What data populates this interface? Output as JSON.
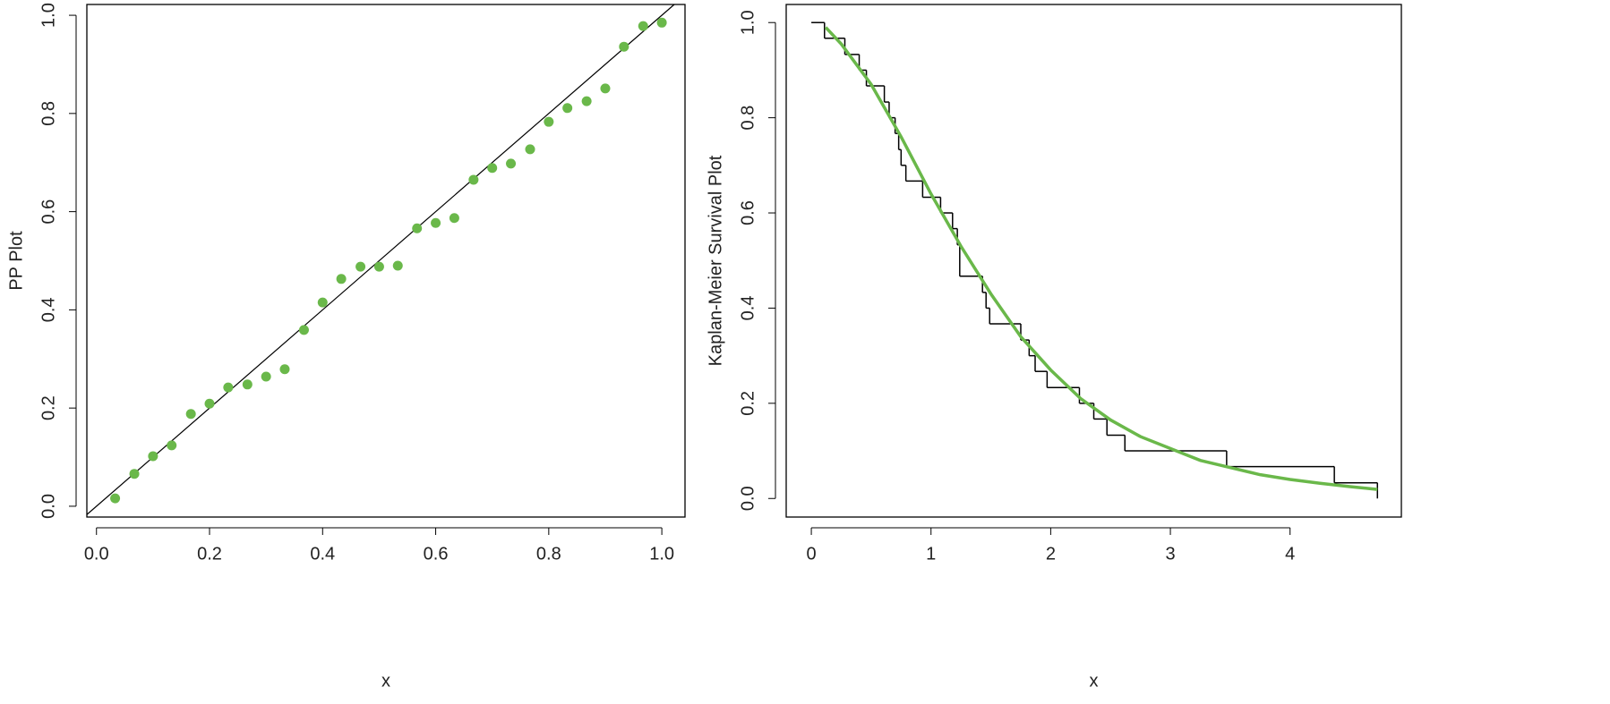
{
  "chart_data": [
    {
      "type": "scatter",
      "xlabel": "x",
      "ylabel": "PP Plot",
      "color": "#6ab84a",
      "diagonal": true,
      "x": [
        0.033,
        0.067,
        0.1,
        0.133,
        0.167,
        0.2,
        0.233,
        0.267,
        0.3,
        0.333,
        0.367,
        0.4,
        0.433,
        0.467,
        0.5,
        0.533,
        0.567,
        0.6,
        0.633,
        0.667,
        0.7,
        0.733,
        0.767,
        0.8,
        0.833,
        0.867,
        0.9,
        0.933,
        0.967,
        1.0
      ],
      "values": [
        0.016,
        0.066,
        0.102,
        0.124,
        0.188,
        0.209,
        0.242,
        0.248,
        0.264,
        0.279,
        0.359,
        0.415,
        0.463,
        0.488,
        0.488,
        0.49,
        0.566,
        0.577,
        0.587,
        0.665,
        0.689,
        0.698,
        0.727,
        0.783,
        0.811,
        0.825,
        0.851,
        0.936,
        0.978,
        0.985
      ],
      "xlim": [
        -0.017,
        1.041
      ],
      "ylim": [
        -0.022,
        1.022
      ],
      "xticks": [
        {
          "value": 0,
          "label": "0.0"
        },
        0.2,
        0.4,
        0.6,
        0.8,
        {
          "value": 1,
          "label": "1.0"
        }
      ],
      "yticks": [
        {
          "value": 0,
          "label": "0.0"
        },
        0.2,
        0.4,
        0.6,
        0.8,
        {
          "value": 1,
          "label": "1.0"
        }
      ]
    },
    {
      "type": "line",
      "xlabel": "x",
      "ylabel": "Kaplan-Meier Survival Plot",
      "xlim": [
        -0.21,
        4.93
      ],
      "ylim": [
        -0.039,
        1.038
      ],
      "xticks": [
        0,
        1,
        2,
        3,
        4
      ],
      "yticks": [
        {
          "value": 0,
          "label": "0.0"
        },
        0.2,
        0.4,
        0.6,
        0.8,
        {
          "value": 1,
          "label": "1.0"
        }
      ],
      "series": [
        {
          "color": "#000000",
          "drawstyle": "steps-post",
          "x": [
            0,
            0.11,
            0.28,
            0.4,
            0.46,
            0.61,
            0.65,
            0.7,
            0.73,
            0.75,
            0.79,
            0.93,
            1.08,
            1.18,
            1.22,
            1.24,
            1.43,
            1.46,
            1.49,
            1.75,
            1.82,
            1.87,
            1.97,
            2.24,
            2.36,
            2.47,
            2.62,
            3.47,
            4.37,
            4.73
          ],
          "values": [
            1,
            0.967,
            0.933,
            0.9,
            0.867,
            0.833,
            0.8,
            0.767,
            0.733,
            0.7,
            0.667,
            0.633,
            0.6,
            0.567,
            0.533,
            0.467,
            0.433,
            0.4,
            0.367,
            0.333,
            0.3,
            0.267,
            0.233,
            0.2,
            0.167,
            0.133,
            0.1,
            0.067,
            0.033,
            0
          ]
        },
        {
          "color": "#6ab84a",
          "x": [
            0.12,
            0.25,
            0.5,
            0.75,
            1.0,
            1.25,
            1.5,
            1.75,
            2.0,
            2.25,
            2.5,
            2.75,
            3.0,
            3.25,
            3.5,
            3.75,
            4.0,
            4.25,
            4.5,
            4.73
          ],
          "values": [
            0.99,
            0.955,
            0.87,
            0.76,
            0.64,
            0.53,
            0.43,
            0.34,
            0.27,
            0.21,
            0.165,
            0.13,
            0.105,
            0.08,
            0.065,
            0.05,
            0.04,
            0.032,
            0.025,
            0.019
          ]
        }
      ]
    }
  ]
}
